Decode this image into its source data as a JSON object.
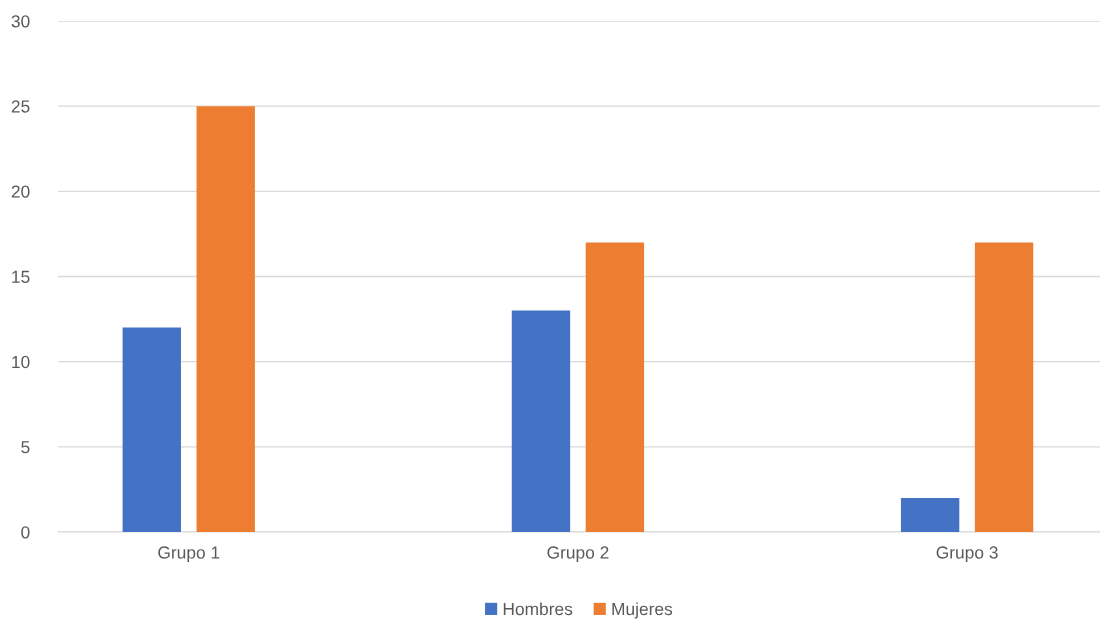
{
  "chart_data": {
    "type": "bar",
    "categories": [
      "Grupo 1",
      "Grupo 2",
      "Grupo 3"
    ],
    "series": [
      {
        "name": "Hombres",
        "color": "#4472c4",
        "values": [
          12,
          13,
          2
        ]
      },
      {
        "name": "Mujeres",
        "color": "#ed7d31",
        "values": [
          25,
          17,
          17
        ]
      }
    ],
    "ylim": [
      0,
      30
    ],
    "yticks": [
      0,
      5,
      10,
      15,
      20,
      25,
      30
    ],
    "grid": "y",
    "legend": "bottom"
  }
}
